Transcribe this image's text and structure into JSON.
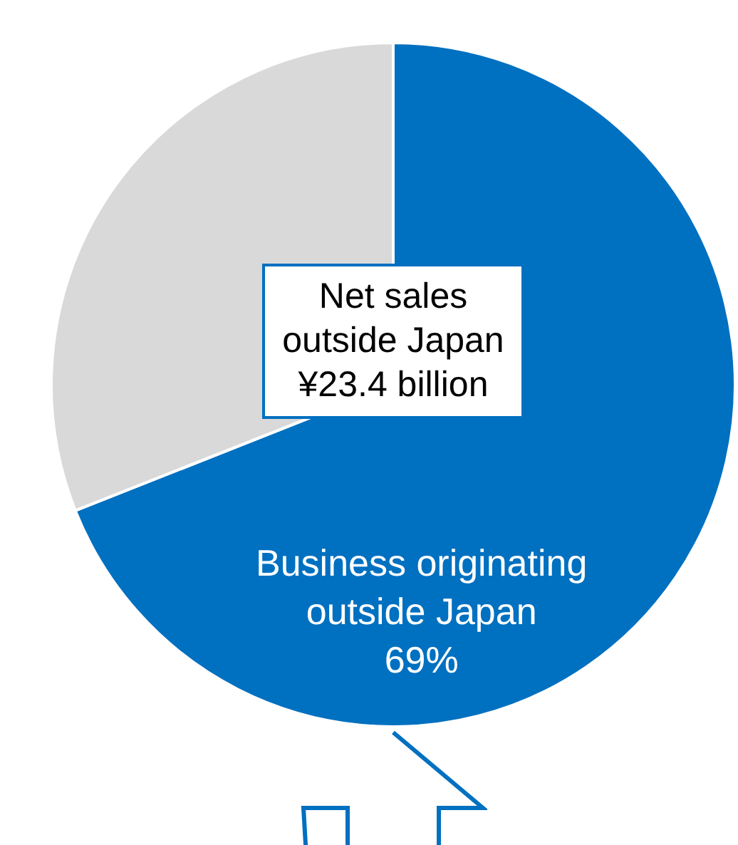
{
  "chart_data": {
    "type": "pie",
    "categories": [
      "Business originating outside Japan",
      null
    ],
    "values": [
      69,
      31
    ],
    "colors": [
      "#0070c0",
      "#d9d9d9"
    ],
    "value_labels": [
      "69%",
      null
    ],
    "annotations": [
      "Net sales outside Japan ¥23.4 billion"
    ],
    "legend": false
  }
}
